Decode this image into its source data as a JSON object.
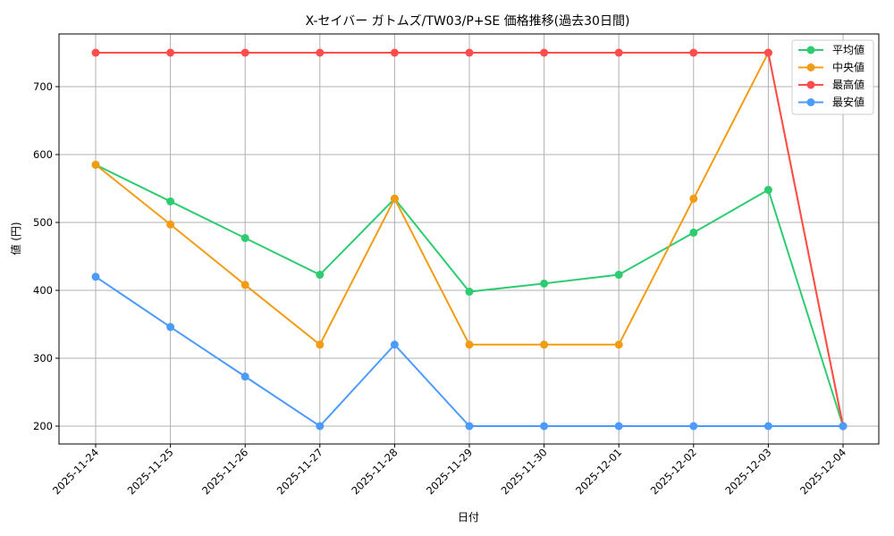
{
  "chart_data": {
    "type": "line",
    "title": "X-セイバー ガトムズ/TW03/P+SE 価格推移(過去30日間)",
    "xlabel": "日付",
    "ylabel": "値 (円)",
    "categories": [
      "2025-11-24",
      "2025-11-25",
      "2025-11-26",
      "2025-11-27",
      "2025-11-28",
      "2025-11-29",
      "2025-11-30",
      "2025-12-01",
      "2025-12-02",
      "2025-12-03",
      "2025-12-04"
    ],
    "yticks": [
      200,
      300,
      400,
      500,
      600,
      700
    ],
    "ylim": [
      172,
      778
    ],
    "grid": true,
    "legend_position": "upper right",
    "series": [
      {
        "name": "平均値",
        "color": "#2ecc71",
        "values": [
          585,
          531,
          477,
          423,
          535,
          398,
          410,
          423,
          485,
          548,
          200
        ]
      },
      {
        "name": "中央値",
        "color": "#f39c12",
        "values": [
          585,
          497,
          408,
          320,
          535,
          320,
          320,
          320,
          535,
          750,
          200
        ]
      },
      {
        "name": "最高値",
        "color": "#ff4d4d",
        "values": [
          750,
          750,
          750,
          750,
          750,
          750,
          750,
          750,
          750,
          750,
          200
        ]
      },
      {
        "name": "最安値",
        "color": "#4b9bff",
        "values": [
          420,
          346,
          273,
          200,
          320,
          200,
          200,
          200,
          200,
          200,
          200
        ]
      }
    ]
  }
}
